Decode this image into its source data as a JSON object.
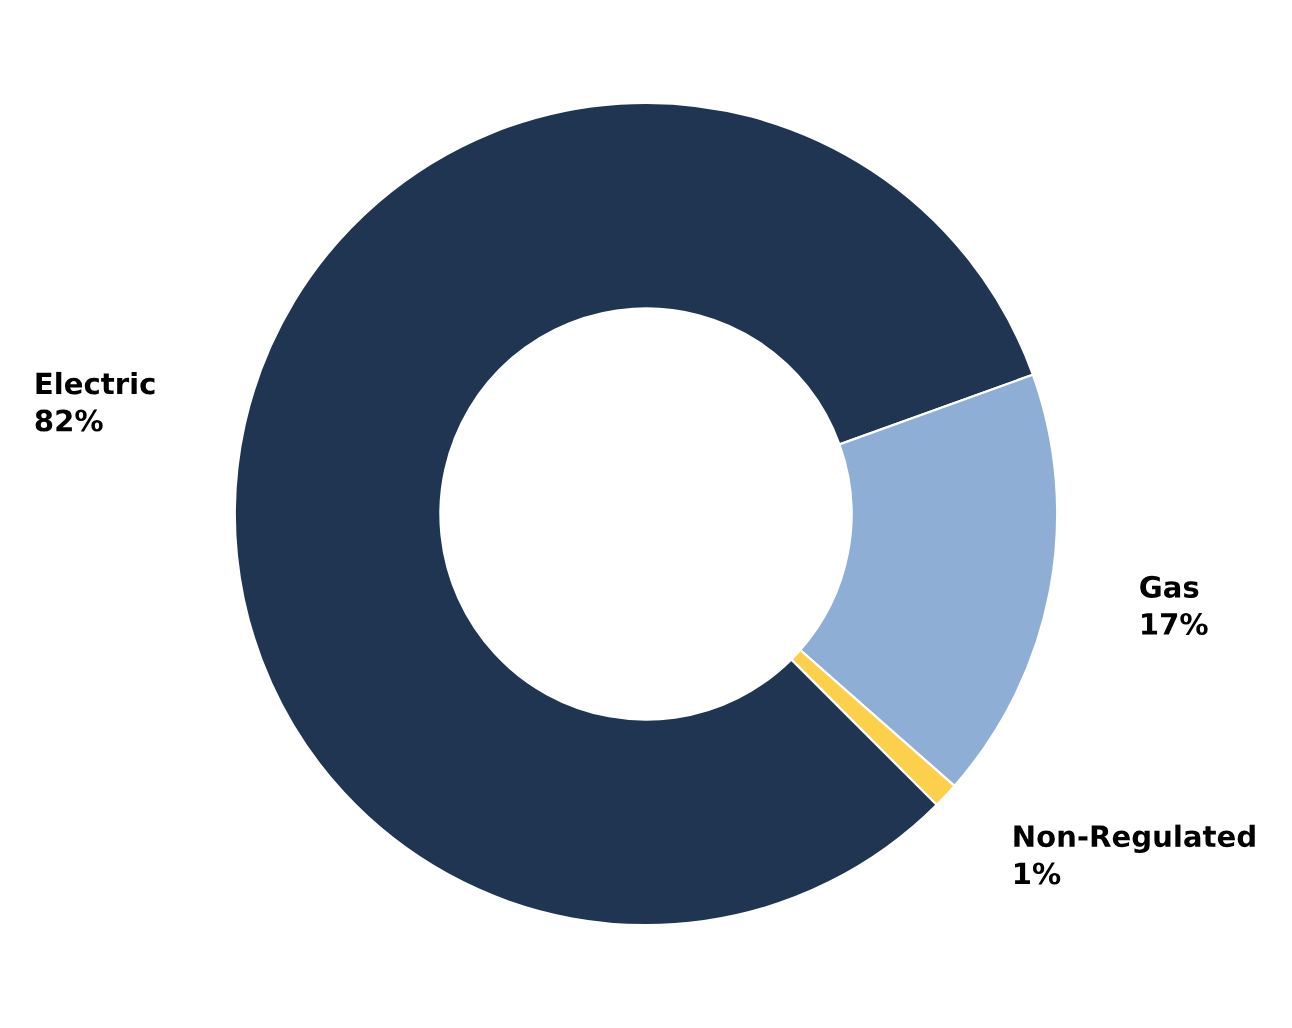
{
  "chart_data": {
    "type": "donut",
    "categories": [
      "Electric",
      "Gas",
      "Non-Regulated"
    ],
    "values": [
      82,
      17,
      1
    ],
    "colors": [
      "#1f3552",
      "#8faed5",
      "#fcd04a"
    ],
    "value_labels": [
      "82%",
      "17%",
      "1%"
    ],
    "legend": false
  }
}
